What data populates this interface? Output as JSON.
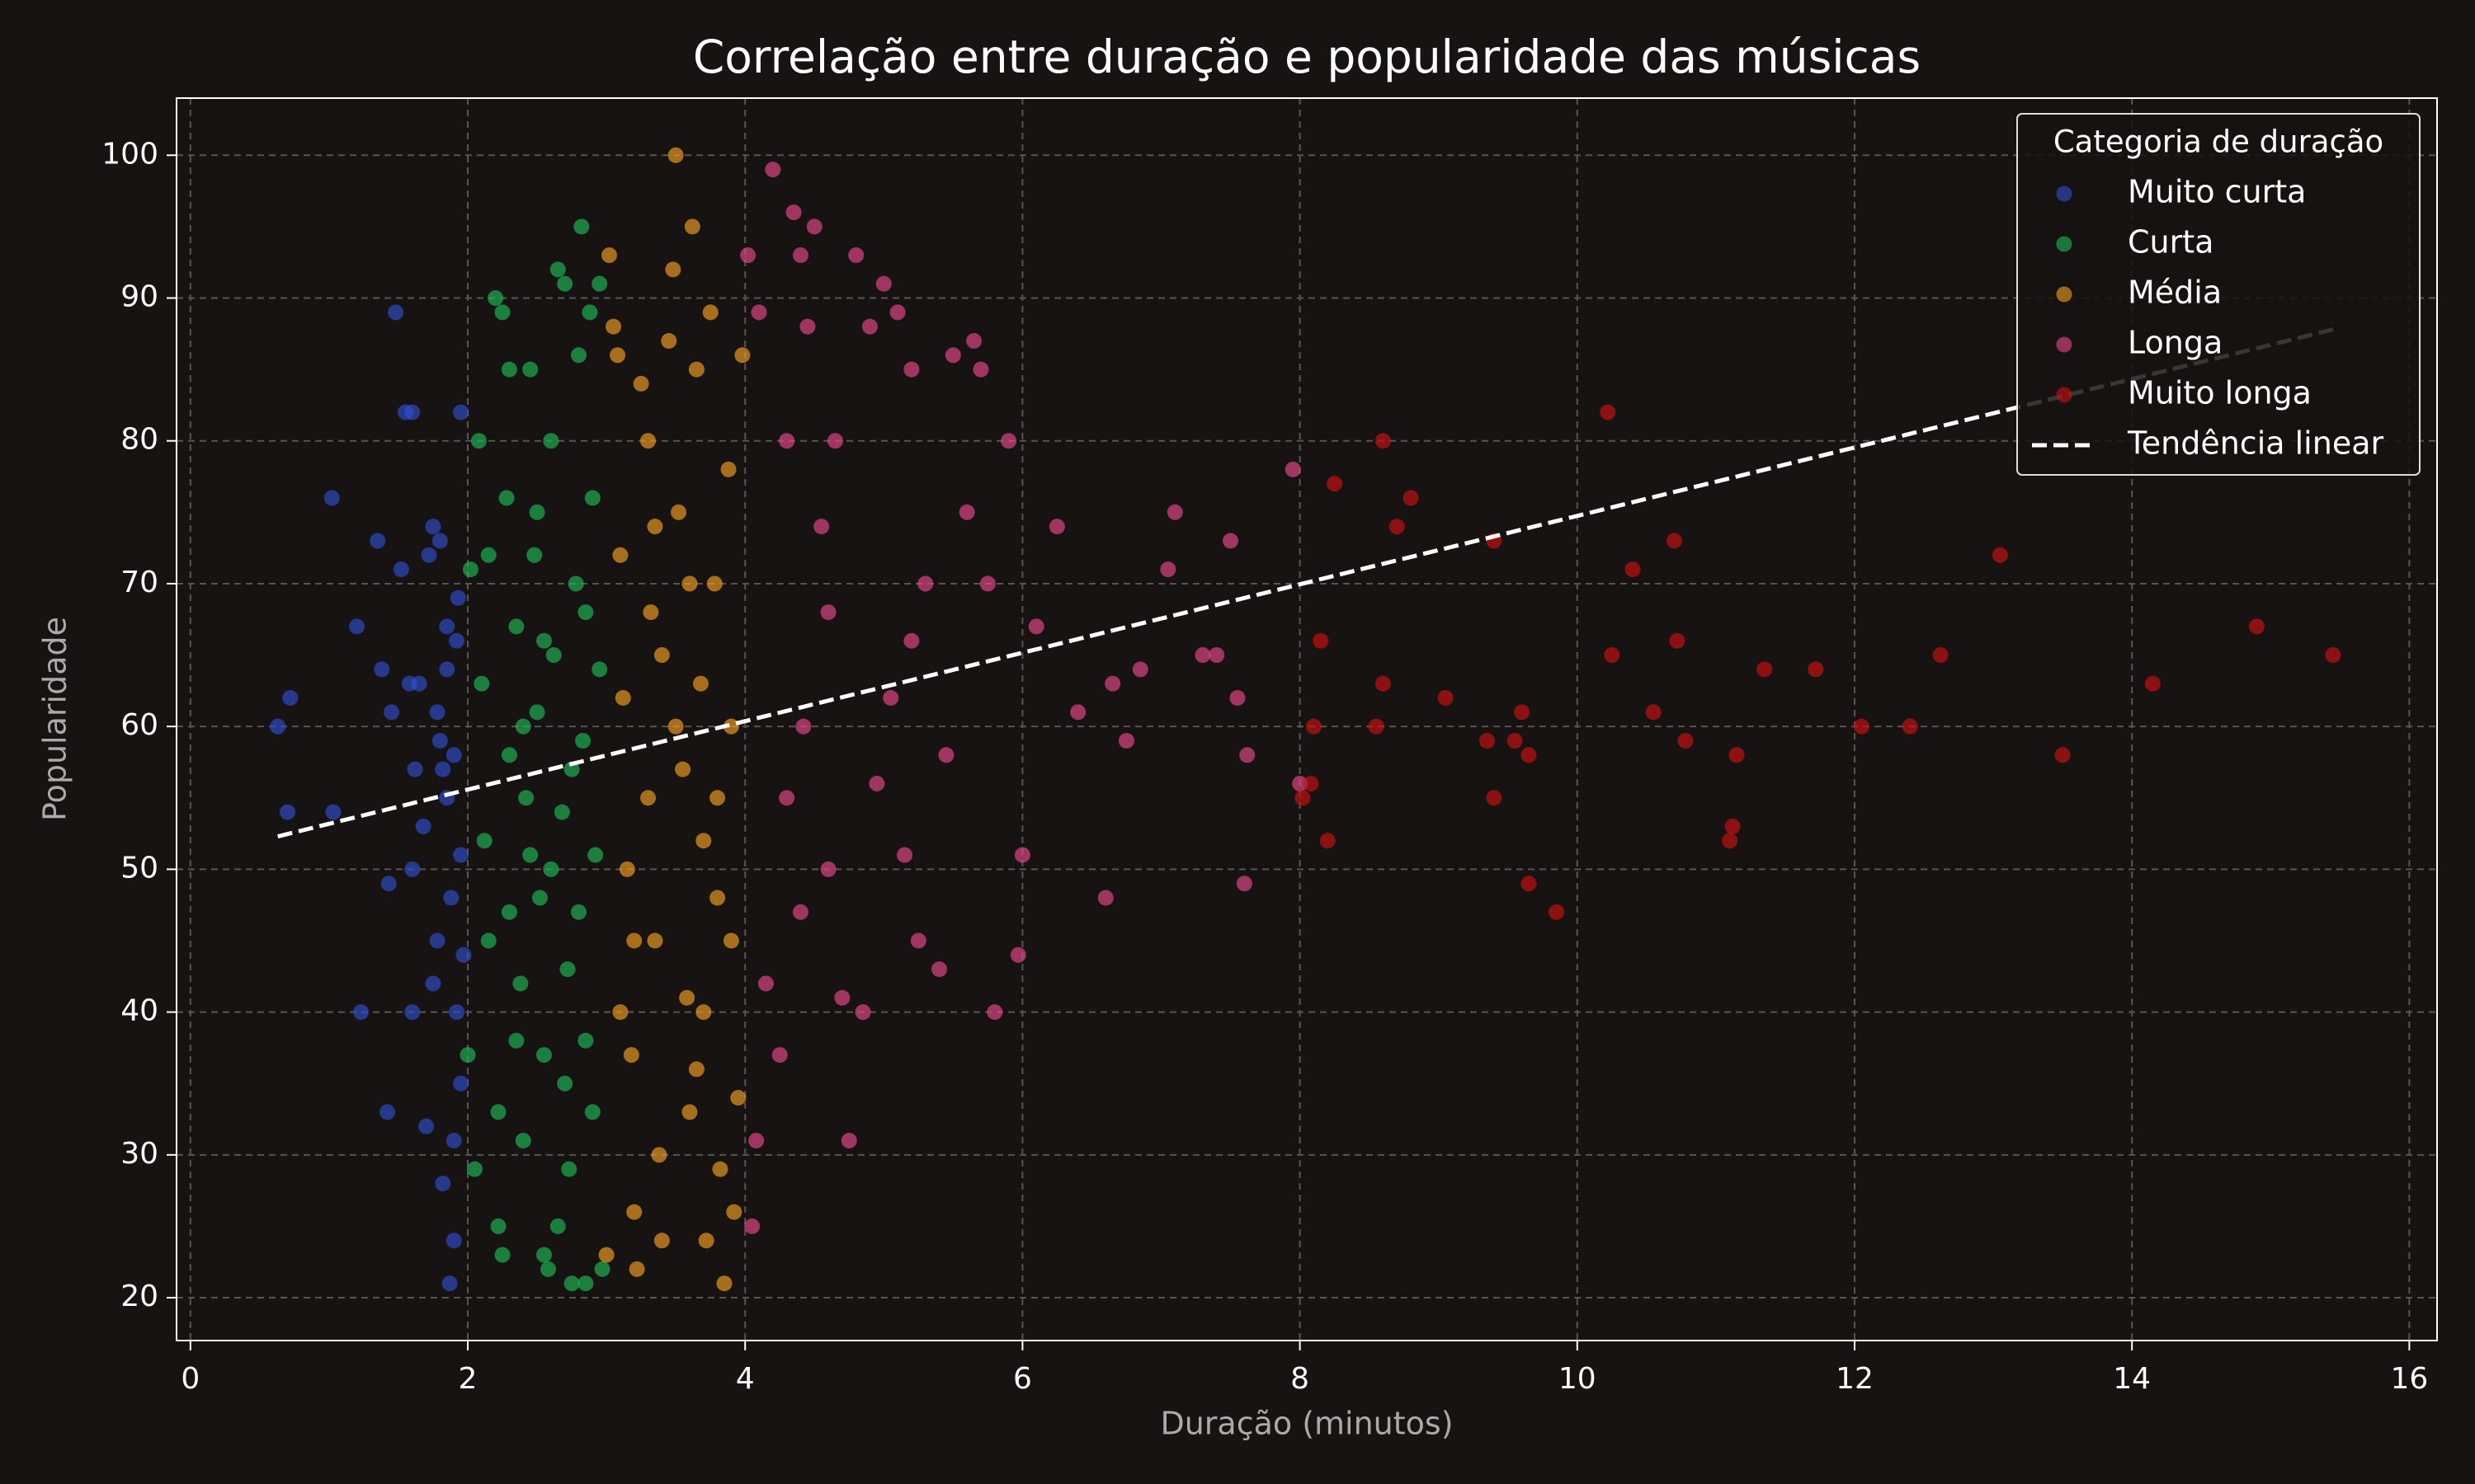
{
  "chart_data": {
    "type": "scatter",
    "title": "Correlação entre duração e popularidade das músicas",
    "xlabel": "Duração (minutos)",
    "ylabel": "Popularidade",
    "xlim": [
      -0.1,
      16.2
    ],
    "ylim": [
      17,
      104
    ],
    "xticks": [
      0,
      2,
      4,
      6,
      8,
      10,
      12,
      14,
      16
    ],
    "yticks": [
      20,
      30,
      40,
      50,
      60,
      70,
      80,
      90,
      100
    ],
    "grid": true,
    "legend": {
      "title": "Categoria de duração",
      "loc": "upper right"
    },
    "series": [
      {
        "name": "Muito curta",
        "color": "#2f4fd0",
        "x": [
          0.63,
          0.7,
          0.72,
          1.02,
          1.03,
          1.2,
          1.23,
          1.35,
          1.38,
          1.42,
          1.43,
          1.45,
          1.48,
          1.52,
          1.55,
          1.6,
          1.58,
          1.62,
          1.6,
          1.6,
          1.65,
          1.68,
          1.7,
          1.72,
          1.75,
          1.75,
          1.78,
          1.78,
          1.8,
          1.82,
          1.85,
          1.85,
          1.87,
          1.9,
          1.9,
          1.92,
          1.95,
          1.95,
          1.93,
          1.9,
          1.88,
          1.85,
          1.8,
          1.82,
          1.95,
          1.97,
          1.92
        ],
        "values": [
          60,
          54,
          62,
          76,
          54,
          67,
          40,
          73,
          64,
          33,
          49,
          61,
          89,
          71,
          82,
          82,
          63,
          57,
          50,
          40,
          63,
          53,
          32,
          72,
          74,
          42,
          45,
          61,
          73,
          28,
          67,
          55,
          21,
          24,
          31,
          40,
          82,
          35,
          69,
          58,
          48,
          64,
          59,
          57,
          51,
          44,
          66
        ]
      },
      {
        "name": "Curta",
        "color": "#1dbb55",
        "x": [
          2.0,
          2.02,
          2.05,
          2.08,
          2.1,
          2.12,
          2.15,
          2.2,
          2.25,
          2.3,
          2.22,
          2.22,
          2.25,
          2.28,
          2.3,
          2.35,
          2.38,
          2.4,
          2.42,
          2.45,
          2.48,
          2.5,
          2.52,
          2.55,
          2.55,
          2.58,
          2.6,
          2.62,
          2.65,
          2.68,
          2.7,
          2.72,
          2.73,
          2.75,
          2.78,
          2.8,
          2.82,
          2.83,
          2.85,
          2.85,
          2.88,
          2.9,
          2.92,
          2.95,
          2.95,
          2.97,
          2.6,
          2.7,
          2.4,
          2.3,
          2.5,
          2.8,
          2.9,
          2.65,
          2.15,
          2.35,
          2.75,
          2.45,
          2.85,
          2.55
        ],
        "values": [
          37,
          71,
          29,
          80,
          63,
          52,
          45,
          90,
          89,
          85,
          33,
          25,
          23,
          76,
          58,
          67,
          42,
          31,
          55,
          85,
          72,
          61,
          48,
          37,
          23,
          22,
          80,
          65,
          92,
          54,
          91,
          43,
          29,
          21,
          70,
          86,
          95,
          59,
          21,
          38,
          89,
          76,
          51,
          91,
          64,
          22,
          50,
          35,
          60,
          47,
          75,
          47,
          33,
          25,
          72,
          38,
          57,
          51,
          68,
          66
        ]
      },
      {
        "name": "Média",
        "color": "#f5a020",
        "x": [
          3.0,
          3.02,
          3.05,
          3.08,
          3.1,
          3.12,
          3.15,
          3.18,
          3.2,
          3.22,
          3.25,
          3.3,
          3.32,
          3.35,
          3.38,
          3.4,
          3.45,
          3.48,
          3.5,
          3.52,
          3.55,
          3.58,
          3.6,
          3.62,
          3.65,
          3.68,
          3.7,
          3.72,
          3.75,
          3.78,
          3.8,
          3.82,
          3.85,
          3.88,
          3.9,
          3.92,
          3.95,
          3.98,
          3.3,
          3.6,
          3.4,
          3.7,
          3.2,
          3.5,
          3.8,
          3.1,
          3.9,
          3.35,
          3.65
        ],
        "values": [
          23,
          93,
          88,
          86,
          72,
          62,
          50,
          37,
          26,
          22,
          84,
          80,
          68,
          45,
          30,
          24,
          87,
          92,
          100,
          75,
          57,
          41,
          33,
          95,
          85,
          63,
          52,
          24,
          89,
          70,
          48,
          29,
          21,
          78,
          60,
          26,
          34,
          86,
          55,
          70,
          65,
          40,
          45,
          60,
          55,
          40,
          45,
          74,
          36
        ]
      },
      {
        "name": "Longa",
        "color": "#e8488a",
        "x": [
          4.02,
          4.05,
          4.08,
          4.1,
          4.15,
          4.2,
          4.25,
          4.3,
          4.35,
          4.4,
          4.42,
          4.45,
          4.5,
          4.55,
          4.6,
          4.65,
          4.7,
          4.75,
          4.8,
          4.85,
          4.9,
          4.95,
          5.0,
          5.05,
          5.1,
          5.15,
          5.2,
          5.25,
          5.3,
          5.4,
          5.45,
          5.5,
          5.6,
          5.65,
          5.7,
          5.75,
          5.8,
          5.9,
          5.97,
          6.0,
          6.1,
          6.25,
          6.4,
          6.6,
          6.65,
          6.75,
          6.85,
          7.05,
          7.1,
          7.3,
          7.4,
          7.5,
          7.55,
          7.6,
          7.62,
          7.95,
          8.0,
          4.3,
          4.6,
          5.2,
          4.4
        ],
        "values": [
          93,
          25,
          31,
          89,
          42,
          99,
          37,
          80,
          96,
          93,
          60,
          88,
          95,
          74,
          50,
          80,
          41,
          31,
          93,
          40,
          88,
          56,
          91,
          62,
          89,
          51,
          85,
          45,
          70,
          43,
          58,
          86,
          75,
          87,
          85,
          70,
          40,
          80,
          44,
          51,
          67,
          74,
          61,
          48,
          63,
          59,
          64,
          71,
          75,
          65,
          65,
          73,
          62,
          49,
          58,
          78,
          56,
          55,
          68,
          66,
          47
        ]
      },
      {
        "name": "Muito longa",
        "color": "#cc1111",
        "x": [
          8.02,
          8.08,
          8.1,
          8.15,
          8.2,
          8.25,
          8.6,
          8.7,
          8.6,
          8.8,
          8.55,
          9.05,
          9.35,
          9.4,
          9.55,
          9.6,
          9.65,
          9.65,
          9.85,
          9.4,
          10.22,
          10.25,
          10.4,
          10.55,
          10.7,
          10.72,
          10.78,
          11.1,
          11.12,
          11.15,
          11.35,
          11.72,
          12.05,
          12.4,
          12.62,
          13.05,
          13.5,
          14.15,
          14.9,
          15.45
        ],
        "values": [
          55,
          56,
          60,
          66,
          52,
          77,
          80,
          74,
          63,
          76,
          60,
          62,
          59,
          55,
          59,
          61,
          58,
          49,
          47,
          73,
          82,
          65,
          71,
          61,
          73,
          66,
          59,
          52,
          53,
          58,
          64,
          64,
          60,
          60,
          65,
          72,
          58,
          63,
          67,
          65
        ]
      }
    ],
    "trend": {
      "name": "Tendência linear",
      "color": "#ffffff",
      "style": "dashed",
      "x": [
        0.63,
        15.45
      ],
      "values": [
        52.3,
        87.8
      ]
    }
  }
}
